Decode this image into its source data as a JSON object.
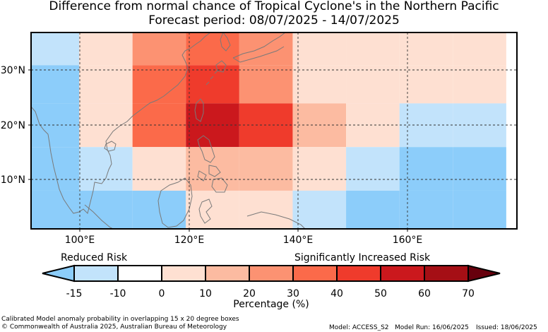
{
  "title": "Difference from normal chance of Tropical Cyclone's in the Northern Pacific",
  "subtitle": "Forecast period: 08/07/2025 - 14/07/2025",
  "map": {
    "lon_range": [
      91,
      182
    ],
    "lat_range": [
      1,
      37
    ],
    "x_ticks": [
      "100°E",
      "120°E",
      "140°E",
      "160°E"
    ],
    "y_ticks": [
      "30°N",
      "20°N",
      "10°N"
    ]
  },
  "colorbar": {
    "left_label": "Reduced Risk",
    "right_label": "Significantly Increased Risk",
    "ticks": [
      "-15",
      "-10",
      "0",
      "10",
      "20",
      "30",
      "40",
      "50",
      "60",
      "70"
    ],
    "axis_label": "Percentage (%)",
    "colors": [
      "#c2e3fb",
      "#ffffff",
      "#fee0d2",
      "#fcbba1",
      "#fc9272",
      "#fb6a4a",
      "#ef3b2c",
      "#cb181d",
      "#a50f15"
    ],
    "under_color": "#8ccdfa",
    "over_color": "#67000d"
  },
  "grid_cells": [
    {
      "lon": 90,
      "lat": 31,
      "v": -12
    },
    {
      "lon": 100,
      "lat": 31,
      "v": 0
    },
    {
      "lon": 110,
      "lat": 31,
      "v": 25
    },
    {
      "lon": 120,
      "lat": 31,
      "v": 35
    },
    {
      "lon": 130,
      "lat": 31,
      "v": 25
    },
    {
      "lon": 140,
      "lat": 31,
      "v": 5
    },
    {
      "lon": 150,
      "lat": 31,
      "v": 0
    },
    {
      "lon": 160,
      "lat": 31,
      "v": 0
    },
    {
      "lon": 170,
      "lat": 31,
      "v": 0
    },
    {
      "lon": 90,
      "lat": 24,
      "v": -20
    },
    {
      "lon": 100,
      "lat": 24,
      "v": 5
    },
    {
      "lon": 110,
      "lat": 24,
      "v": 35
    },
    {
      "lon": 120,
      "lat": 24,
      "v": 45
    },
    {
      "lon": 130,
      "lat": 24,
      "v": 25
    },
    {
      "lon": 140,
      "lat": 24,
      "v": 5
    },
    {
      "lon": 150,
      "lat": 24,
      "v": 0
    },
    {
      "lon": 160,
      "lat": 24,
      "v": 0
    },
    {
      "lon": 170,
      "lat": 24,
      "v": 0
    },
    {
      "lon": 90,
      "lat": 16,
      "v": -20
    },
    {
      "lon": 100,
      "lat": 16,
      "v": 5
    },
    {
      "lon": 110,
      "lat": 16,
      "v": 35
    },
    {
      "lon": 120,
      "lat": 16,
      "v": 55
    },
    {
      "lon": 130,
      "lat": 16,
      "v": 45
    },
    {
      "lon": 140,
      "lat": 16,
      "v": 15
    },
    {
      "lon": 150,
      "lat": 16,
      "v": 0
    },
    {
      "lon": 160,
      "lat": 16,
      "v": -12
    },
    {
      "lon": 170,
      "lat": 16,
      "v": -12
    },
    {
      "lon": 90,
      "lat": 8,
      "v": -20
    },
    {
      "lon": 100,
      "lat": 8,
      "v": -12
    },
    {
      "lon": 110,
      "lat": 8,
      "v": 5
    },
    {
      "lon": 120,
      "lat": 8,
      "v": 15
    },
    {
      "lon": 130,
      "lat": 8,
      "v": 15
    },
    {
      "lon": 140,
      "lat": 8,
      "v": 5
    },
    {
      "lon": 150,
      "lat": 8,
      "v": -12
    },
    {
      "lon": 160,
      "lat": 8,
      "v": -20
    },
    {
      "lon": 170,
      "lat": 8,
      "v": -20
    },
    {
      "lon": 90,
      "lat": 0,
      "v": -20
    },
    {
      "lon": 100,
      "lat": 0,
      "v": -20
    },
    {
      "lon": 110,
      "lat": 0,
      "v": -20
    },
    {
      "lon": 120,
      "lat": 0,
      "v": 0
    },
    {
      "lon": 130,
      "lat": 0,
      "v": 0
    },
    {
      "lon": 140,
      "lat": 0,
      "v": -12
    },
    {
      "lon": 150,
      "lat": 0,
      "v": -20
    },
    {
      "lon": 160,
      "lat": 0,
      "v": -20
    },
    {
      "lon": 170,
      "lat": 0,
      "v": -20
    }
  ],
  "footer": {
    "note": "Calibrated Model anomaly probability in overlapping 15 x 20 degree boxes",
    "copyright": "© Commonwealth of Australia 2025, Australian Bureau of Meteorology",
    "model": "Model: ACCESS_S2",
    "model_run": "Model Run: 16/06/2025",
    "issued": "Issued: 18/06/2025"
  }
}
